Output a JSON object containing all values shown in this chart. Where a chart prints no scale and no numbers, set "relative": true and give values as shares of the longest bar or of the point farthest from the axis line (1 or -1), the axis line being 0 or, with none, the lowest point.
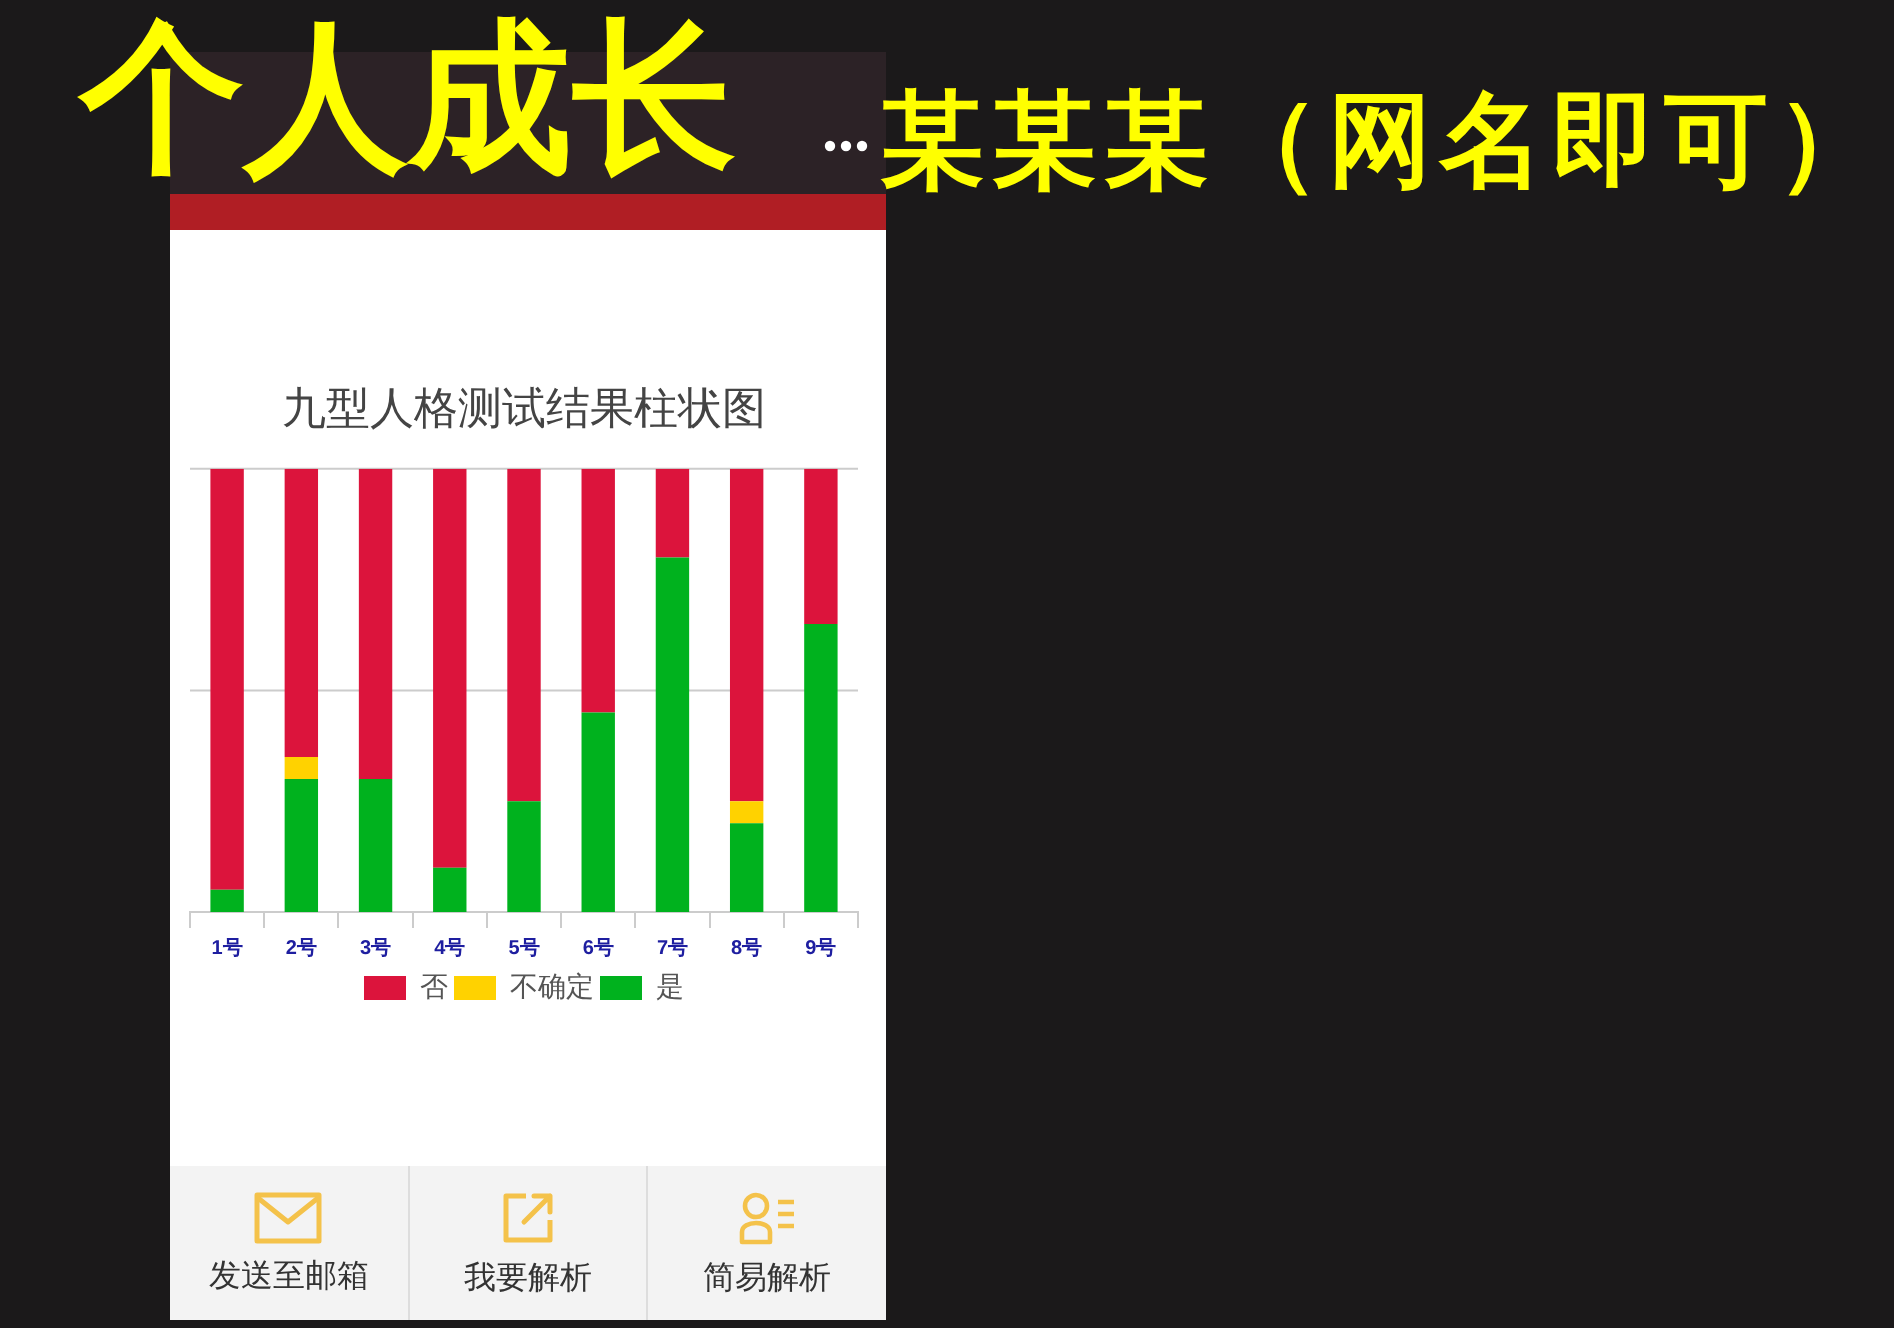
{
  "chart_data": {
    "type": "bar",
    "title": "九型人格测试结果柱状图",
    "categories": [
      "1号",
      "2号",
      "3号",
      "4号",
      "5号",
      "6号",
      "7号",
      "8号",
      "9号"
    ],
    "series": [
      {
        "name": "是",
        "color": "#00b21e",
        "values": [
          0.05,
          0.3,
          0.3,
          0.1,
          0.25,
          0.45,
          0.8,
          0.2,
          0.65
        ]
      },
      {
        "name": "不确定",
        "color": "#ffd200",
        "values": [
          0,
          0.05,
          0,
          0,
          0,
          0,
          0,
          0.05,
          0
        ]
      },
      {
        "name": "否",
        "color": "#dc143c",
        "values": [
          0.95,
          0.65,
          0.7,
          0.9,
          0.75,
          0.55,
          0.2,
          0.75,
          0.35
        ]
      }
    ],
    "stacked": true,
    "relative": true,
    "ref_lines": [
      {
        "axis": "y",
        "value": 0.5,
        "color": "#cccccc"
      },
      {
        "axis": "y",
        "value": 1,
        "color": "#cccccc"
      }
    ],
    "legend": "bottom",
    "annotations": [
      "个人成长",
      "某某某（网名即可）",
      "发送至邮箱",
      "我要解析",
      "简易解析"
    ]
  }
}
